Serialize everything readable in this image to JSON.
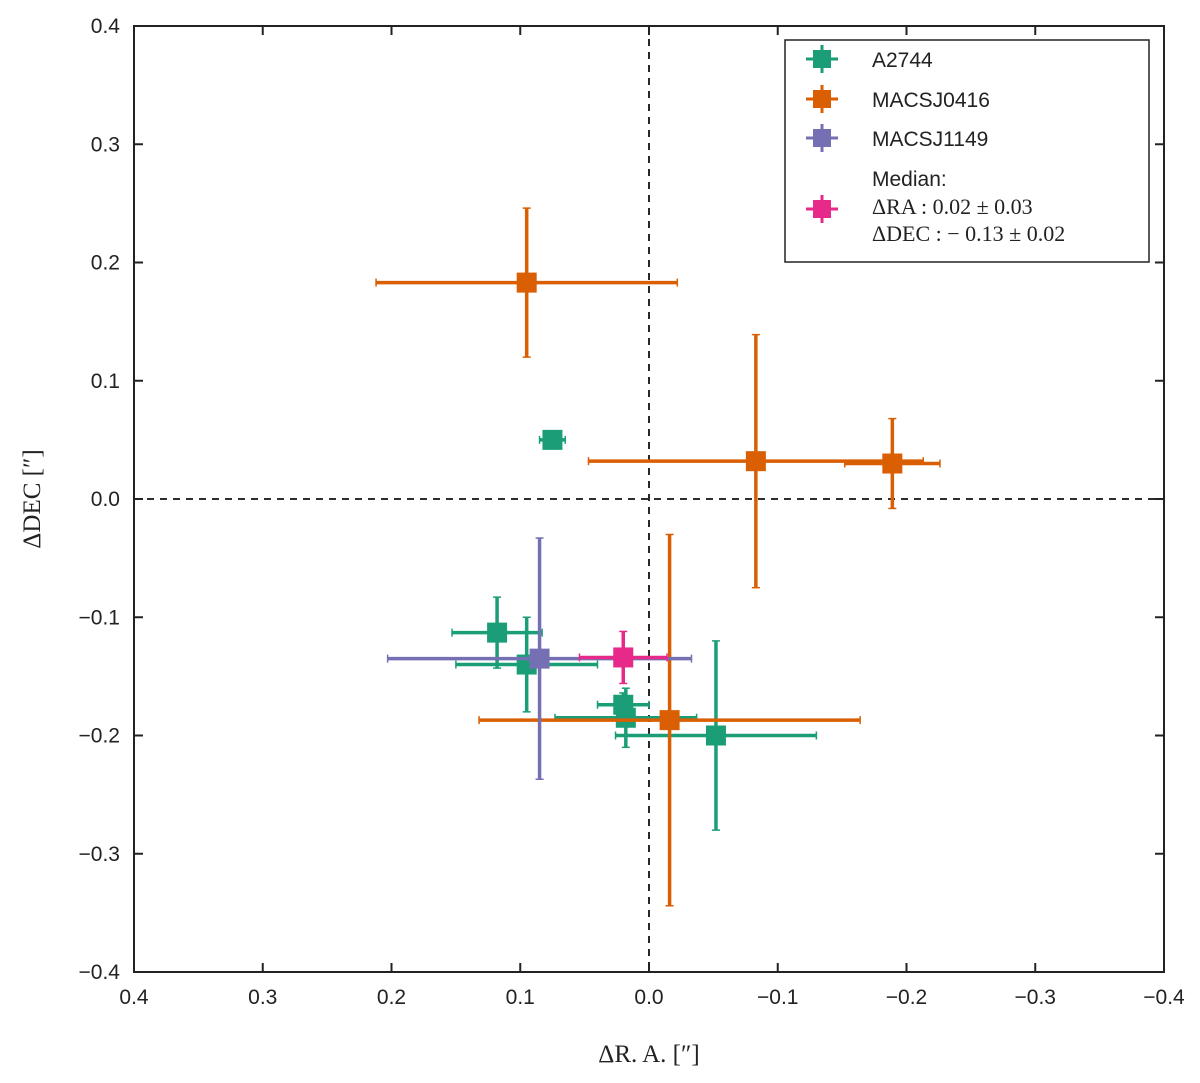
{
  "chart_data": {
    "type": "scatter",
    "title": "",
    "xlabel": "ΔR. A. [″]",
    "ylabel": "ΔDEC [″]",
    "xlim": [
      0.4,
      -0.4
    ],
    "ylim": [
      -0.4,
      0.4
    ],
    "x_inverted": true,
    "x_ticks": [
      0.4,
      0.3,
      0.2,
      0.1,
      0.0,
      -0.1,
      -0.2,
      -0.3,
      -0.4
    ],
    "x_tick_labels": [
      "0.4",
      "0.3",
      "0.2",
      "0.1",
      "0.0",
      "−0.1",
      "−0.2",
      "−0.3",
      "−0.4"
    ],
    "y_ticks": [
      0.4,
      0.3,
      0.2,
      0.1,
      0.0,
      -0.1,
      -0.2,
      -0.3,
      -0.4
    ],
    "y_tick_labels": [
      "0.4",
      "0.3",
      "0.2",
      "0.1",
      "0.0",
      "−0.1",
      "−0.2",
      "−0.3",
      "−0.4"
    ],
    "grid": false,
    "reference_lines": {
      "x": 0.0,
      "y": 0.0,
      "style": "dashed"
    },
    "legend_position": "top-right",
    "series": [
      {
        "name": "A2744",
        "color": "#1b9e77",
        "points": [
          {
            "x": 0.075,
            "y": 0.05,
            "xerr": 0.01,
            "yerr": 0.005
          },
          {
            "x": 0.118,
            "y": -0.113,
            "xerr": 0.035,
            "yerr": 0.03
          },
          {
            "x": 0.095,
            "y": -0.14,
            "xerr": 0.055,
            "yerr": 0.04
          },
          {
            "x": 0.02,
            "y": -0.174,
            "xerr": 0.02,
            "yerr": 0.01
          },
          {
            "x": 0.018,
            "y": -0.185,
            "xerr": 0.055,
            "yerr": 0.025
          },
          {
            "x": -0.052,
            "y": -0.2,
            "xerr": 0.078,
            "yerr": 0.08
          }
        ]
      },
      {
        "name": "MACSJ0416",
        "color": "#d95f02",
        "points": [
          {
            "x": 0.095,
            "y": 0.183,
            "xerr": 0.117,
            "yerr": 0.063
          },
          {
            "x": -0.083,
            "y": 0.032,
            "xerr": 0.13,
            "yerr": 0.107
          },
          {
            "x": -0.189,
            "y": 0.03,
            "xerr": 0.037,
            "yerr": 0.038
          },
          {
            "x": -0.016,
            "y": -0.187,
            "xerr": 0.148,
            "yerr": 0.157
          }
        ]
      },
      {
        "name": "MACSJ1149",
        "color": "#7570b3",
        "points": [
          {
            "x": 0.085,
            "y": -0.135,
            "xerr": 0.118,
            "yerr": 0.102
          }
        ]
      },
      {
        "name": "Median",
        "color": "#e7298a",
        "points": [
          {
            "x": 0.02,
            "y": -0.134,
            "xerr": 0.034,
            "yerr": 0.022
          }
        ]
      }
    ],
    "legend": [
      {
        "label": "A2744",
        "color": "#1b9e77"
      },
      {
        "label": "MACSJ0416",
        "color": "#d95f02"
      },
      {
        "label": "MACSJ1149",
        "color": "#7570b3"
      },
      {
        "label": "Median:",
        "color": "#e7298a",
        "lines": [
          "ΔRA : 0.02 ± 0.03",
          "ΔDEC : − 0.13 ± 0.02"
        ]
      }
    ]
  }
}
